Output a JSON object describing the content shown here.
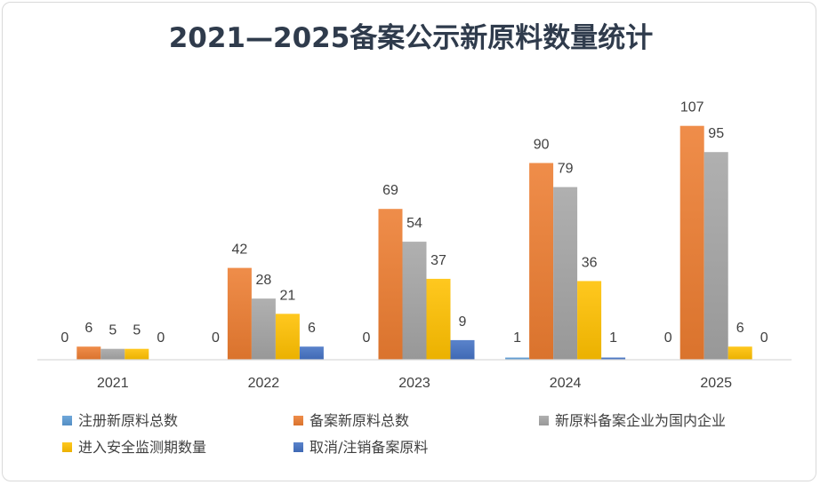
{
  "chart_data": {
    "type": "bar",
    "title": "2021—2025备案公示新原料数量统计",
    "categories": [
      "2021",
      "2022",
      "2023",
      "2024",
      "2025"
    ],
    "series": [
      {
        "name": "注册新原料总数",
        "values": [
          0,
          0,
          0,
          1,
          0
        ],
        "color": "#5b9bd5"
      },
      {
        "name": "备案新原料总数",
        "values": [
          6,
          42,
          69,
          90,
          107
        ],
        "color": "#ed7d31"
      },
      {
        "name": "新原料备案企业为国内企业",
        "values": [
          5,
          28,
          54,
          79,
          95
        ],
        "color": "#a5a5a5"
      },
      {
        "name": "进入安全监测期数量",
        "values": [
          5,
          21,
          37,
          36,
          6
        ],
        "color": "#ffc000"
      },
      {
        "name": "取消/注销备案原料",
        "values": [
          0,
          6,
          9,
          1,
          0
        ],
        "color": "#4472c4"
      }
    ],
    "ylim": [
      0,
      115
    ],
    "grid": false,
    "legend_position": "bottom",
    "xlabel": "",
    "ylabel": ""
  }
}
